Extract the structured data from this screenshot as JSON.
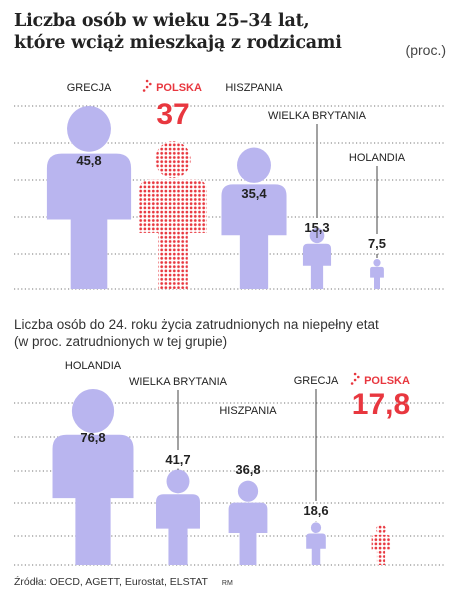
{
  "title_line1": "Liczba osób w wieku 25–34 lat,",
  "title_line2": "które wciąż mieszkają z rodzicami",
  "unit": "(proc.)",
  "subtitle_line1": "Liczba osób do 24. roku życia zatrudnionych na niepełny etat",
  "subtitle_line2": "(w proc. zatrudnionych w tej grupie)",
  "source": "Źródła: OECD, AGETT, Eurostat, ELSTAT",
  "author": "RM",
  "colors": {
    "figure": "#b9b5ef",
    "highlight": "#e8373f",
    "gridline": "#4a4a4a",
    "leader": "#444444",
    "text": "#222222"
  },
  "chart_data": [
    {
      "type": "bar",
      "style": "pictograph",
      "categories": [
        "GRECJA",
        "POLSKA",
        "HISZPANIA",
        "WIELKA BRYTANIA",
        "HOLANDIA"
      ],
      "values": [
        45.8,
        37,
        35.4,
        15.3,
        7.5
      ],
      "value_labels": [
        "45,8",
        "37",
        "35,4",
        "15,3",
        "7,5"
      ],
      "highlight": "POLSKA",
      "title": "Liczba osób w wieku 25–34 lat, które wciąż mieszkają z rodzicami",
      "unit": "(proc.)",
      "grid": true
    },
    {
      "type": "bar",
      "style": "pictograph",
      "categories": [
        "HOLANDIA",
        "WIELKA BRYTANIA",
        "HISZPANIA",
        "GRECJA",
        "POLSKA"
      ],
      "values": [
        76.8,
        41.7,
        36.8,
        18.6,
        17.8
      ],
      "value_labels": [
        "76,8",
        "41,7",
        "36,8",
        "18,6",
        "17,8"
      ],
      "highlight": "POLSKA",
      "title": "Liczba osób do 24. roku życia zatrudnionych na niepełny etat (w proc. zatrudnionych w tej grupie)",
      "grid": true
    }
  ]
}
